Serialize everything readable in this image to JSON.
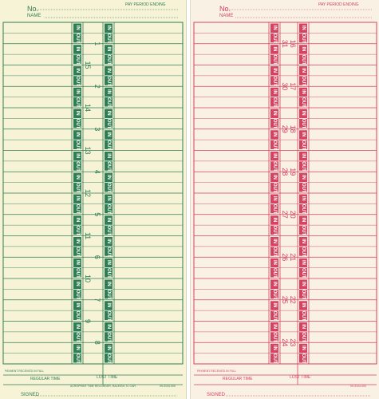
{
  "cards": [
    {
      "id": "left",
      "ink": "#2f7d53",
      "no_label": "No.",
      "name_label": "NAME",
      "pay_period_label": "PAY PERIOD ENDING",
      "in_label": "IN",
      "out_label": "OUT",
      "days_col1": [
        "15",
        "14",
        "13",
        "12",
        "11",
        "10",
        "9"
      ],
      "days_col2": [
        "1",
        "2",
        "3",
        "4",
        "5",
        "6",
        "7",
        "8"
      ],
      "regular_time_label": "REGULAR TIME",
      "lost_time_label": "LOST TIME",
      "payment_label": "PAYMENT RECEIVED IN FULL",
      "maker_label": "ACROPRINT TIME RECORDER, RALEIGH, N. CAR.",
      "form_number": "09-3104-000",
      "signed_label": "SIGNED"
    },
    {
      "id": "right",
      "ink": "#d6425f",
      "no_label": "No.",
      "name_label": "NAME",
      "pay_period_label": "PAY PERIOD ENDING",
      "in_label": "IN",
      "out_label": "OUT",
      "days_col1": [
        "31",
        "30",
        "29",
        "28",
        "27",
        "26",
        "25",
        "24"
      ],
      "days_col2": [
        "16",
        "17",
        "18",
        "19",
        "20",
        "21",
        "22",
        "23"
      ],
      "regular_time_label": "REGULAR TIME",
      "lost_time_label": "LOST TIME",
      "payment_label": "PAYMENT RECEIVED IN FULL",
      "form_number": "09-3104-000",
      "signed_label": "SIGNED"
    }
  ]
}
